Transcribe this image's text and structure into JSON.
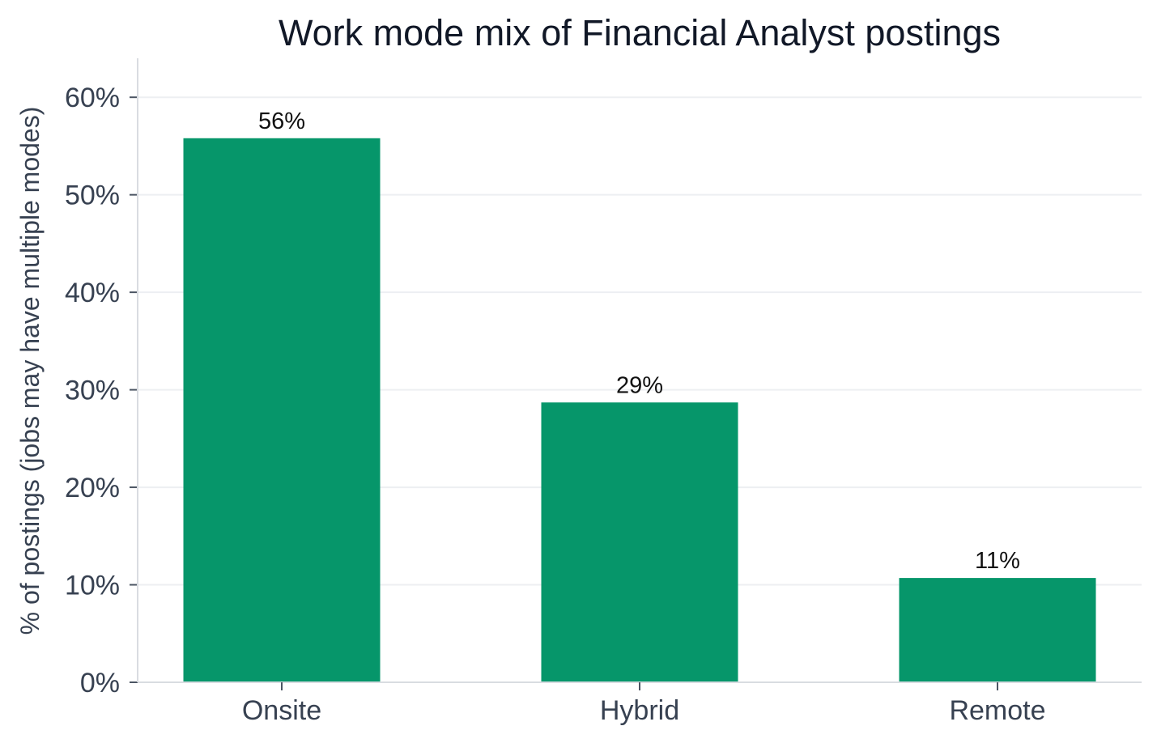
{
  "chart_data": {
    "type": "bar",
    "title": "Work mode mix of Financial Analyst postings",
    "xlabel": "",
    "ylabel": "% of postings (jobs may have multiple modes)",
    "categories": [
      "Onsite",
      "Hybrid",
      "Remote"
    ],
    "values": [
      55.8,
      28.7,
      10.7
    ],
    "data_labels": [
      "56%",
      "29%",
      "11%"
    ],
    "ylim": [
      0,
      64
    ],
    "yticks": [
      0,
      10,
      20,
      30,
      40,
      50,
      60
    ],
    "ytick_labels": [
      "0%",
      "10%",
      "20%",
      "30%",
      "40%",
      "50%",
      "60%"
    ],
    "grid": "horizontal",
    "legend": "none",
    "colors": {
      "bar": "#06966A",
      "grid": "#EDEFF2",
      "axis": "#D9DCE1",
      "title": "#111827",
      "text": "#374151"
    }
  }
}
